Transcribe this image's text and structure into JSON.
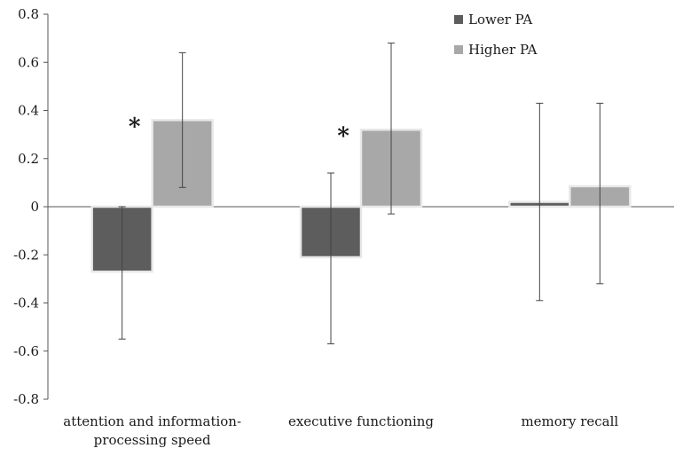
{
  "chart_data": {
    "type": "bar",
    "categories": [
      [
        "attention and information-",
        "processing speed"
      ],
      [
        "executive functioning"
      ],
      [
        "memory recall"
      ]
    ],
    "series": [
      {
        "name": "Lower PA",
        "color": "#5d5d5d",
        "values": [
          -0.27,
          -0.21,
          0.02
        ],
        "error_low": [
          -0.55,
          -0.57,
          -0.39
        ],
        "error_high": [
          0.0,
          0.14,
          0.43
        ]
      },
      {
        "name": "Higher PA",
        "color": "#a8a8a8",
        "values": [
          0.36,
          0.32,
          0.085
        ],
        "error_low": [
          0.08,
          -0.03,
          -0.32
        ],
        "error_high": [
          0.64,
          0.68,
          0.43
        ]
      }
    ],
    "significance": [
      {
        "category_index": 0,
        "label": "*"
      },
      {
        "category_index": 1,
        "label": "*"
      }
    ],
    "ylim": [
      -0.8,
      0.8
    ],
    "yticks": [
      "0.8",
      "0.6",
      "0.4",
      "0.2",
      "0",
      "-0.2",
      "-0.4",
      "-0.6",
      "-0.8"
    ],
    "yticks_values": [
      0.8,
      0.6,
      0.4,
      0.2,
      0,
      -0.2,
      -0.4,
      -0.6,
      -0.8
    ],
    "legend_position": "top-right",
    "grid": false
  }
}
